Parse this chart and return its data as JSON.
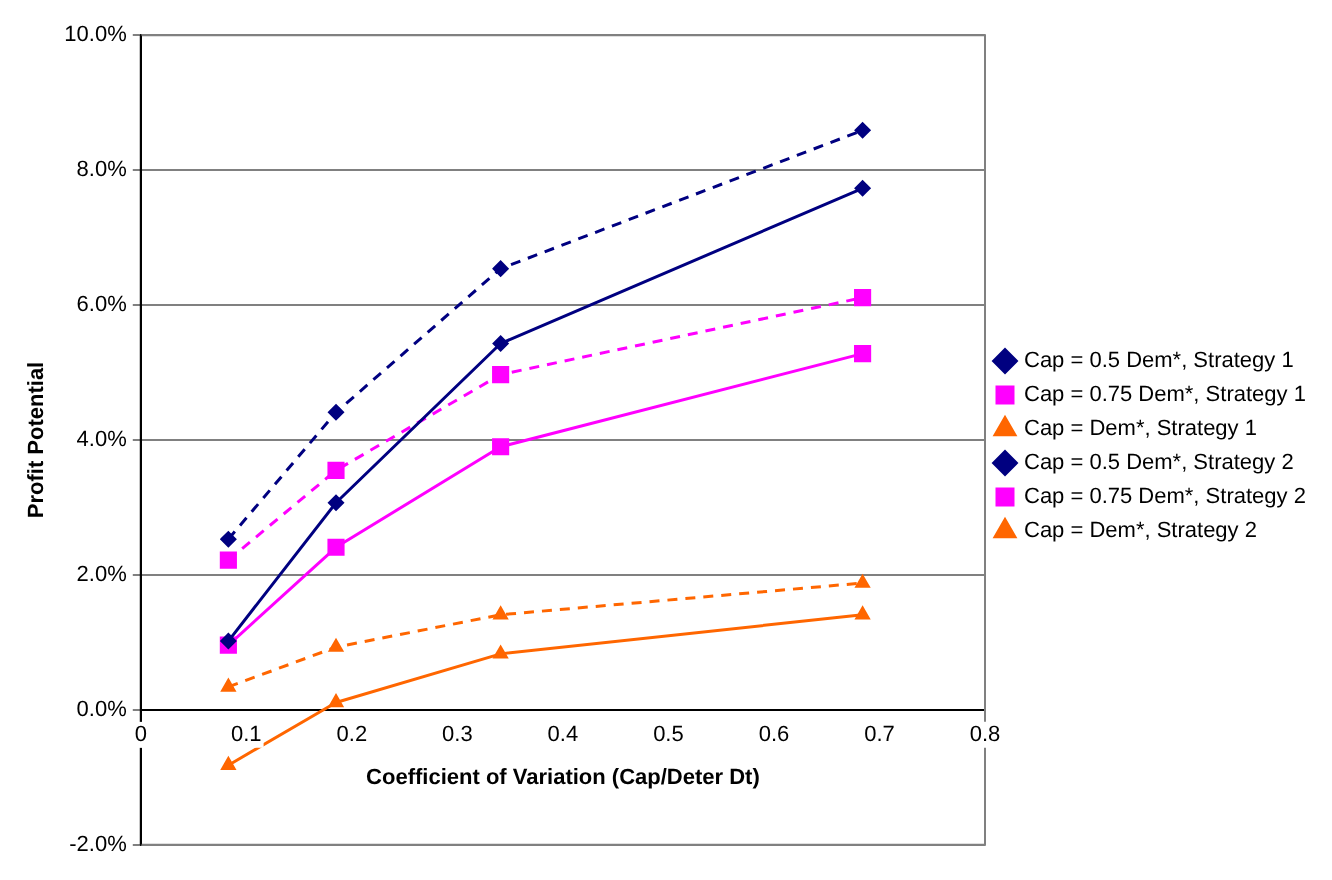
{
  "chart_data": {
    "type": "line",
    "xlabel": "Coefficient of Variation (Cap/Deter Dt)",
    "ylabel": "Profit Potential",
    "xlim": [
      0,
      0.8
    ],
    "xticks": [
      0,
      0.1,
      0.2,
      0.3,
      0.4,
      0.5,
      0.6,
      0.7,
      0.8
    ],
    "ylim": [
      -2,
      10
    ],
    "yticks": [
      {
        "value": -2,
        "label": "-2.0%"
      },
      {
        "value": 0,
        "label": "0.0%"
      },
      {
        "value": 2,
        "label": "2.0%"
      },
      {
        "value": 4,
        "label": "4.0%"
      },
      {
        "value": 6,
        "label": "6.0%"
      },
      {
        "value": 8,
        "label": "8.0%"
      },
      {
        "value": 10,
        "label": "10.0%"
      }
    ],
    "grid": "y",
    "legend": "right",
    "x": [
      0.083,
      0.185,
      0.341,
      0.684
    ],
    "series": [
      {
        "name": "Cap = 0.5 Dem*, Strategy 1",
        "color": "#000080",
        "marker": "diamond",
        "line_style": "solid",
        "values": [
          1.02,
          3.07,
          5.43,
          7.73
        ]
      },
      {
        "name": "Cap = 0.75 Dem*, Strategy 1",
        "color": "#ff00ff",
        "marker": "square",
        "line_style": "solid",
        "values": [
          0.96,
          2.41,
          3.9,
          5.28
        ]
      },
      {
        "name": "Cap = Dem*, Strategy 1",
        "color": "#ff6600",
        "marker": "triangle",
        "line_style": "solid",
        "values": [
          -0.82,
          0.11,
          0.83,
          1.41
        ]
      },
      {
        "name": "Cap = 0.5 Dem*, Strategy 2",
        "color": "#000080",
        "marker": "diamond",
        "line_style": "dashed",
        "values": [
          2.53,
          4.41,
          6.54,
          8.59
        ]
      },
      {
        "name": "Cap = 0.75 Dem*, Strategy 2",
        "color": "#ff00ff",
        "marker": "square",
        "line_style": "dashed",
        "values": [
          2.22,
          3.55,
          4.97,
          6.11
        ]
      },
      {
        "name": "Cap = Dem*, Strategy 2",
        "color": "#ff6600",
        "marker": "triangle",
        "line_style": "dashed",
        "values": [
          0.34,
          0.93,
          1.41,
          1.88
        ]
      }
    ]
  }
}
